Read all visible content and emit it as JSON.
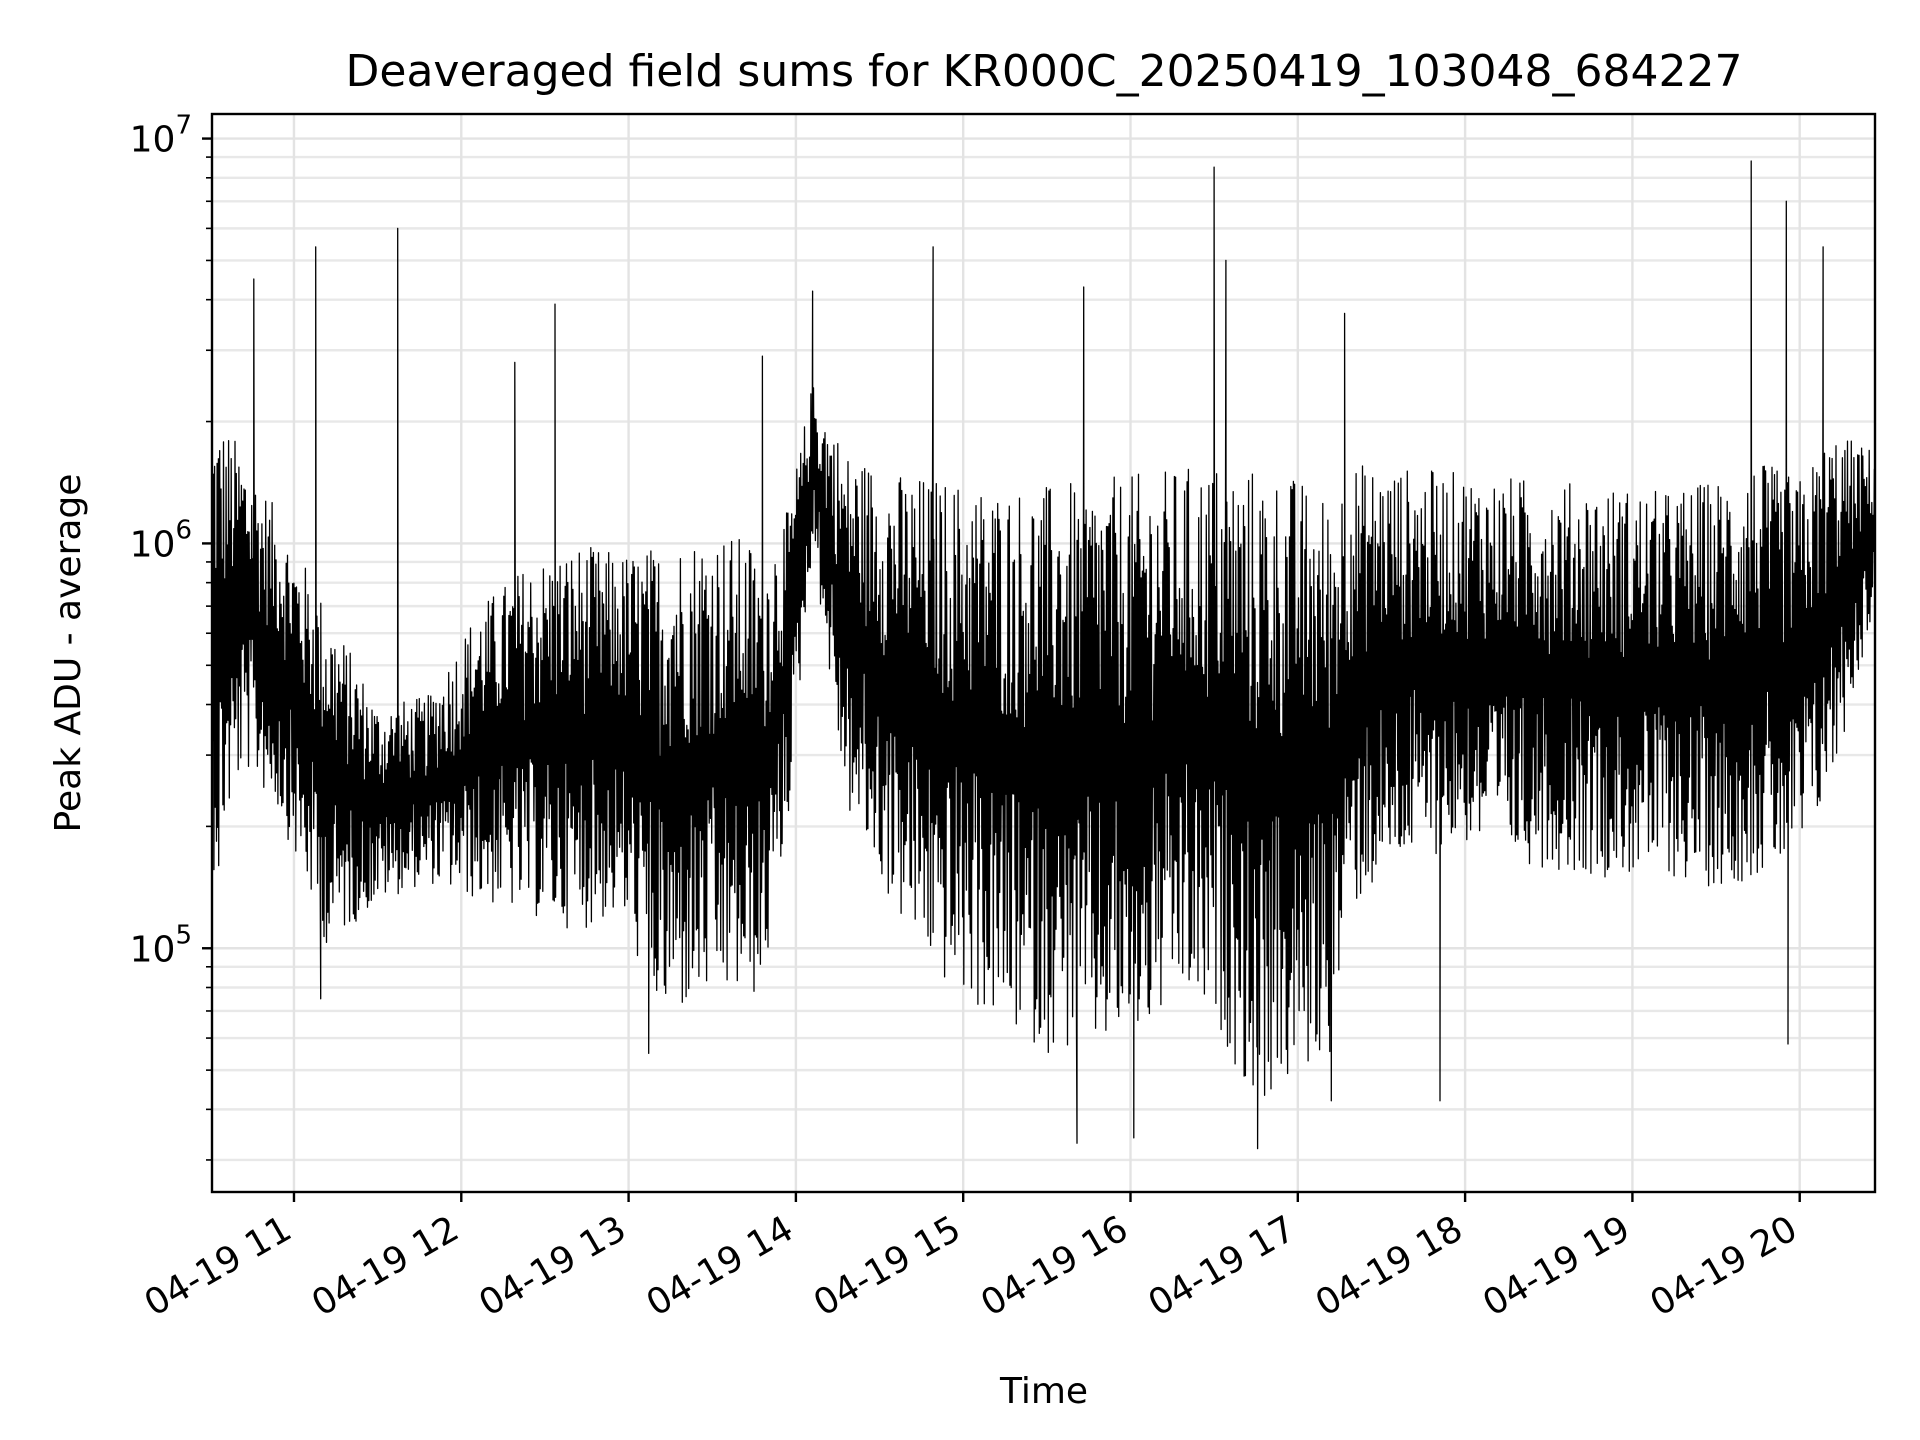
{
  "chart_data": {
    "type": "line",
    "title": "Deaveraged field sums for KR000C_20250419_103048_684227",
    "xlabel": "Time",
    "ylabel": "Peak ADU - average",
    "yscale": "log",
    "ylim": [
      25000,
      11500000
    ],
    "xlim_hours": [
      10.51,
      20.45
    ],
    "grid": true,
    "x_ticks": [
      {
        "hour": 11,
        "label": "04-19 11"
      },
      {
        "hour": 12,
        "label": "04-19 12"
      },
      {
        "hour": 13,
        "label": "04-19 13"
      },
      {
        "hour": 14,
        "label": "04-19 14"
      },
      {
        "hour": 15,
        "label": "04-19 15"
      },
      {
        "hour": 16,
        "label": "04-19 16"
      },
      {
        "hour": 17,
        "label": "04-19 17"
      },
      {
        "hour": 18,
        "label": "04-19 18"
      },
      {
        "hour": 19,
        "label": "04-19 19"
      },
      {
        "hour": 20,
        "label": "04-19 20"
      }
    ],
    "y_ticks": [
      {
        "value": 100000,
        "base": "10",
        "exp": "5"
      },
      {
        "value": 1000000,
        "base": "10",
        "exp": "6"
      },
      {
        "value": 10000000,
        "base": "10",
        "exp": "7"
      }
    ],
    "series": [
      {
        "name": "Peak ADU - average",
        "color": "#000000",
        "sample_count": 2600,
        "envelope": {
          "hours": [
            10.51,
            10.7,
            10.9,
            11.2,
            11.5,
            11.8,
            12.1,
            12.4,
            12.7,
            12.95,
            13.2,
            13.5,
            13.8,
            13.95,
            14.1,
            14.3,
            14.6,
            14.9,
            15.2,
            15.5,
            15.8,
            16.1,
            16.3,
            16.55,
            16.75,
            16.95,
            17.2,
            17.3,
            17.6,
            18.0,
            18.4,
            18.8,
            19.2,
            19.5,
            19.75,
            20.0,
            20.2,
            20.45
          ],
          "lower": [
            150000,
            280000,
            220000,
            100000,
            130000,
            145000,
            130000,
            120000,
            110000,
            120000,
            65000,
            75000,
            75000,
            200000,
            1000000,
            220000,
            120000,
            80000,
            65000,
            55000,
            55000,
            60000,
            75000,
            60000,
            40000,
            45000,
            55000,
            120000,
            160000,
            180000,
            160000,
            150000,
            150000,
            140000,
            150000,
            160000,
            260000,
            700000
          ],
          "upper": [
            2200000,
            1700000,
            1200000,
            700000,
            400000,
            420000,
            700000,
            900000,
            1000000,
            950000,
            1000000,
            1100000,
            1000000,
            1200000,
            2500000,
            1700000,
            1500000,
            1450000,
            1400000,
            1400000,
            1450000,
            1500000,
            1550000,
            1600000,
            1550000,
            1500000,
            1300000,
            1600000,
            1550000,
            1500000,
            1450000,
            1400000,
            1350000,
            1450000,
            1600000,
            1450000,
            1900000,
            1700000
          ]
        },
        "spikes": [
          {
            "hour": 10.76,
            "value": 4500000
          },
          {
            "hour": 11.13,
            "value": 5400000
          },
          {
            "hour": 11.62,
            "value": 6000000
          },
          {
            "hour": 12.32,
            "value": 2800000
          },
          {
            "hour": 12.56,
            "value": 3900000
          },
          {
            "hour": 13.8,
            "value": 2900000
          },
          {
            "hour": 14.1,
            "value": 4200000
          },
          {
            "hour": 14.82,
            "value": 5400000
          },
          {
            "hour": 15.72,
            "value": 4300000
          },
          {
            "hour": 16.5,
            "value": 8500000
          },
          {
            "hour": 16.57,
            "value": 5000000
          },
          {
            "hour": 17.28,
            "value": 3700000
          },
          {
            "hour": 19.71,
            "value": 8800000
          },
          {
            "hour": 19.92,
            "value": 7000000
          },
          {
            "hour": 20.14,
            "value": 5400000
          }
        ],
        "dips": [
          {
            "hour": 10.55,
            "value": 160000
          },
          {
            "hour": 11.16,
            "value": 75000
          },
          {
            "hour": 13.12,
            "value": 55000
          },
          {
            "hour": 15.68,
            "value": 33000
          },
          {
            "hour": 16.02,
            "value": 34000
          },
          {
            "hour": 16.76,
            "value": 32000
          },
          {
            "hour": 17.2,
            "value": 42000
          },
          {
            "hour": 17.85,
            "value": 42000
          },
          {
            "hour": 19.93,
            "value": 58000
          }
        ]
      }
    ]
  }
}
